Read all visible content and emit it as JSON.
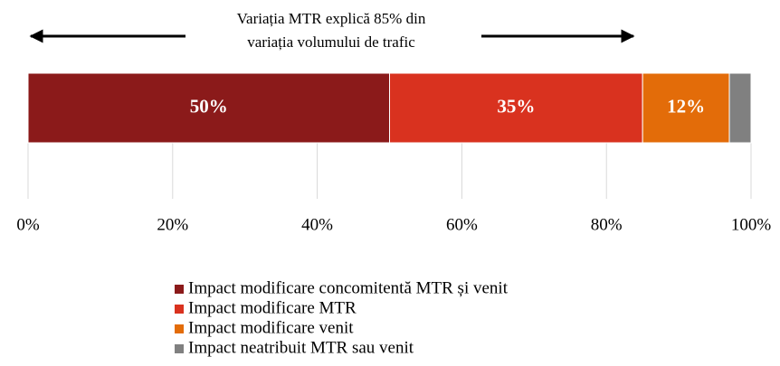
{
  "chart_data": {
    "type": "stacked-barh",
    "annotation": [
      "Variația MTR explică 85% din",
      "variația volumului de trafic"
    ],
    "series": [
      {
        "name": "Impact modificare concomitentă MTR și venit",
        "color": "#8b1a1a",
        "values": [
          50
        ],
        "value_labels": [
          "50%"
        ]
      },
      {
        "name": "Impact modificare MTR",
        "color": "#d9321f",
        "values": [
          35
        ],
        "value_labels": [
          "35%"
        ]
      },
      {
        "name": "Impact modificare venit",
        "color": "#e36c09",
        "values": [
          12
        ],
        "value_labels": [
          "12%"
        ]
      },
      {
        "name": "Impact neatribuit MTR sau venit",
        "color": "#808080",
        "values": [
          3
        ]
      }
    ],
    "xlim": [
      0,
      100
    ],
    "xticks": [
      {
        "value": 0,
        "label": "0%"
      },
      {
        "value": 20,
        "label": "20%"
      },
      {
        "value": 40,
        "label": "40%"
      },
      {
        "value": 60,
        "label": "60%"
      },
      {
        "value": 80,
        "label": "80%"
      },
      {
        "value": 100,
        "label": "100%"
      }
    ],
    "grid": true,
    "legend": "bottom"
  }
}
